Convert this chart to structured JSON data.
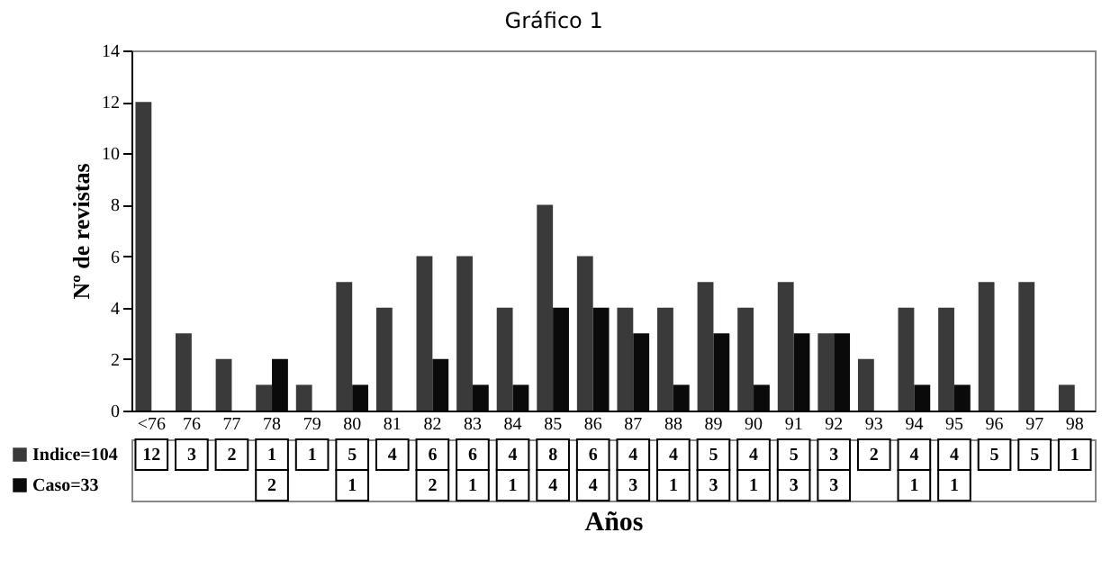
{
  "chart_data": {
    "type": "bar",
    "title": "Gráfico 1",
    "xlabel": "Años",
    "ylabel": "Nº de revistas",
    "categories": [
      "<76",
      "76",
      "77",
      "78",
      "79",
      "80",
      "81",
      "82",
      "83",
      "84",
      "85",
      "86",
      "87",
      "88",
      "89",
      "90",
      "91",
      "92",
      "93",
      "94",
      "95",
      "96",
      "97",
      "98"
    ],
    "series": [
      {
        "name": "Indice=104",
        "color": "#3a3a3a",
        "values": [
          12,
          3,
          2,
          1,
          1,
          5,
          4,
          6,
          6,
          4,
          8,
          6,
          4,
          4,
          5,
          4,
          5,
          3,
          2,
          4,
          4,
          5,
          5,
          1
        ]
      },
      {
        "name": "Caso=33",
        "color": "#0a0a0a",
        "values": [
          null,
          null,
          null,
          2,
          null,
          1,
          null,
          2,
          1,
          1,
          4,
          4,
          3,
          1,
          3,
          1,
          3,
          3,
          null,
          1,
          1,
          null,
          null,
          null
        ]
      }
    ],
    "ylim": [
      0,
      14
    ],
    "yticks": [
      0,
      2,
      4,
      6,
      8,
      10,
      12,
      14
    ],
    "data_labels": true,
    "legend": "bottom left"
  }
}
